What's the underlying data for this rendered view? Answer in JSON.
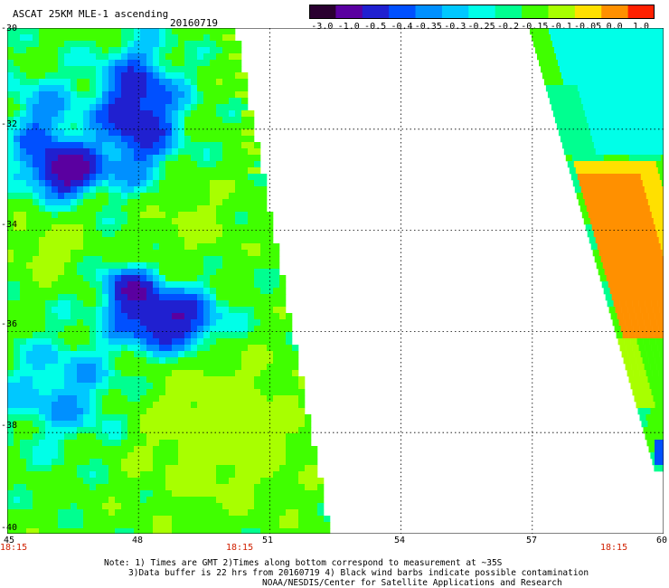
{
  "header": {
    "product": "ASCAT 25KM MLE-1 ascending",
    "date": "20160719"
  },
  "colorbar": {
    "labels": [
      "-3.0",
      "-1.0",
      "-0.5",
      "-0.4",
      "-0.35",
      "-0.3",
      "-0.25",
      "-0.2",
      "-0.15",
      "-0.1",
      "-0.05",
      "0.0",
      "1.0"
    ],
    "colors": [
      "#2a0030",
      "#5a00a0",
      "#2020d0",
      "#0050ff",
      "#0090ff",
      "#00c8ff",
      "#00ffe8",
      "#00ff90",
      "#40ff00",
      "#a8ff00",
      "#ffe000",
      "#ff9000",
      "#ff2000"
    ]
  },
  "map": {
    "lat_labels": [
      "-30",
      "-32",
      "-34",
      "-36",
      "-38",
      "-40"
    ],
    "lon_labels": [
      "45",
      "48",
      "51",
      "54",
      "57",
      "60"
    ],
    "lat_range": [
      -40,
      -30
    ],
    "lon_range": [
      45,
      60
    ],
    "time_labels": [
      "18:15",
      "18:15",
      "18:15"
    ]
  },
  "notes": {
    "line1": "Note: 1) Times are GMT 2)Times along bottom correspond to measurement at ~35S",
    "line2": "3)Data buffer is 22 hrs from 20160719 4) Black wind barbs indicate possible contamination",
    "line3": "NOAA/NESDIS/Center for Satellite Applications and Research"
  }
}
